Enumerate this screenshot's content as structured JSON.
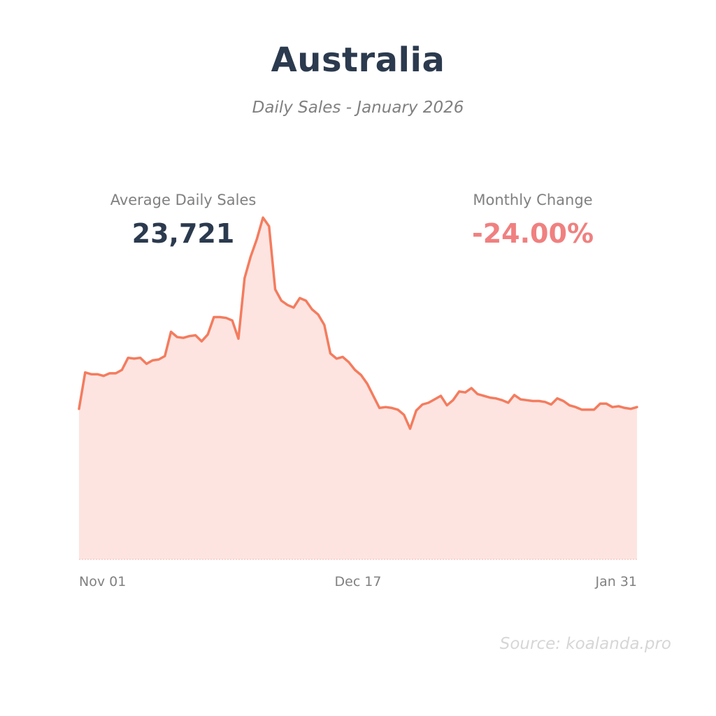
{
  "title": "Australia",
  "subtitle": "Daily Sales - January 2026",
  "stats": {
    "average_label": "Average Daily Sales",
    "average_value": "23,721",
    "change_label": "Monthly Change",
    "change_value": "-24.00%"
  },
  "source": "Source: koalanda.pro",
  "colors": {
    "title": "#2b3a4e",
    "negative": "#f08080",
    "line": "#f47c5e",
    "fill": "#fde4e1"
  },
  "chart_data": {
    "type": "area",
    "title": "",
    "xlabel": "",
    "ylabel": "",
    "grid": false,
    "x_start": "Nov 01",
    "x_end": "Jan 31",
    "tick_labels": [
      "Nov 01",
      "Dec 17",
      "Jan 31"
    ],
    "ylim": [
      0,
      40000
    ],
    "series": [
      {
        "values": [
          17400,
          21600,
          21400,
          21400,
          21200,
          21500,
          21500,
          21900,
          23300,
          23200,
          23300,
          22600,
          23000,
          23100,
          23500,
          26300,
          25700,
          25600,
          25800,
          25900,
          25200,
          26000,
          28000,
          28000,
          27900,
          27600,
          25500,
          32500,
          35000,
          37000,
          39500,
          38500,
          31200,
          29900,
          29400,
          29100,
          30200,
          29900,
          28900,
          28300,
          27100,
          23800,
          23200,
          23400,
          22800,
          21900,
          21300,
          20300,
          18900,
          17500,
          17600,
          17500,
          17300,
          16700,
          15100,
          17200,
          17900,
          18100,
          18500,
          18900,
          17800,
          18400,
          19400,
          19300,
          19800,
          19100,
          18900,
          18700,
          18600,
          18400,
          18100,
          19000,
          18500,
          18400,
          18300,
          18300,
          18200,
          17900,
          18600,
          18300,
          17800,
          17600,
          17300,
          17300,
          17300,
          18000,
          18000,
          17600,
          17700,
          17500,
          17400,
          17600
        ]
      }
    ]
  }
}
